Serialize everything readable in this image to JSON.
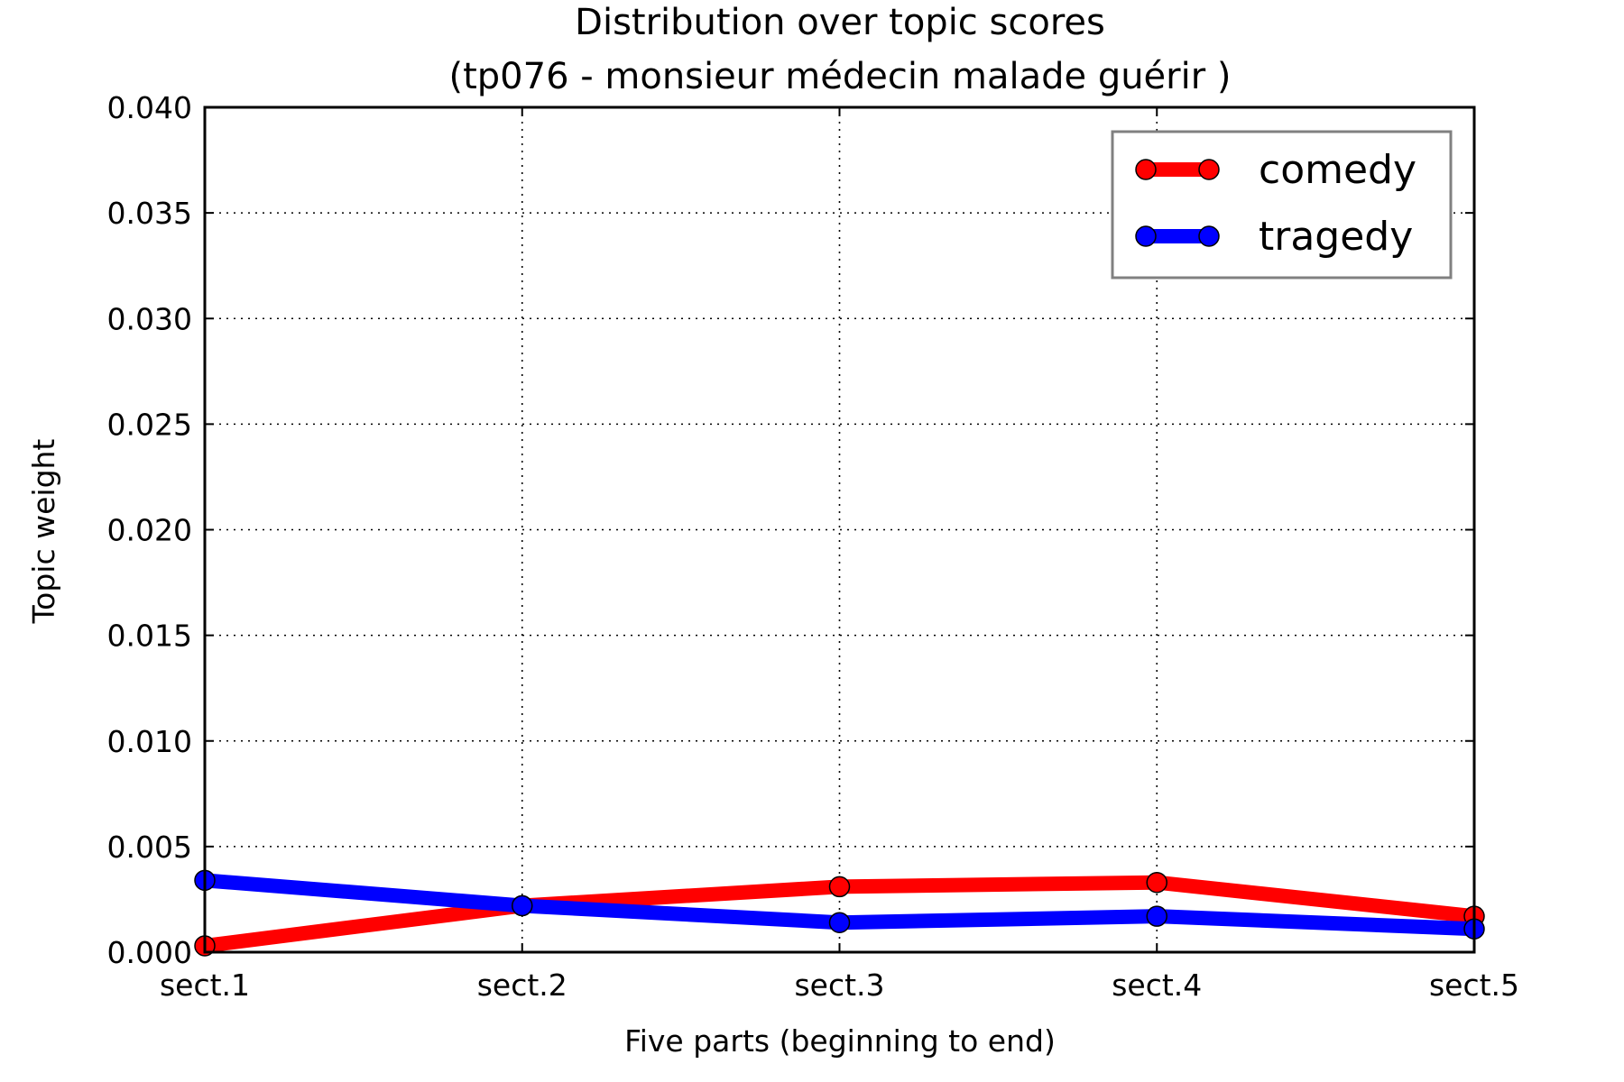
{
  "chart_data": {
    "type": "line",
    "title": "Distribution over topic scores",
    "subtitle": "(tp076 - monsieur médecin malade guérir )",
    "xlabel": "Five parts (beginning to end)",
    "ylabel": "Topic weight",
    "categories": [
      "sect.1",
      "sect.2",
      "sect.3",
      "sect.4",
      "sect.5"
    ],
    "ylim": [
      0,
      0.04
    ],
    "yticks": [
      "0.000",
      "0.005",
      "0.010",
      "0.015",
      "0.020",
      "0.025",
      "0.030",
      "0.035",
      "0.040"
    ],
    "grid": true,
    "legend_position": "top-right",
    "series": [
      {
        "name": "comedy",
        "color": "#ff0000",
        "values": [
          0.0003,
          0.0022,
          0.0031,
          0.0033,
          0.0017
        ]
      },
      {
        "name": "tragedy",
        "color": "#0000ff",
        "values": [
          0.0034,
          0.0022,
          0.0014,
          0.0017,
          0.0011
        ]
      }
    ]
  }
}
